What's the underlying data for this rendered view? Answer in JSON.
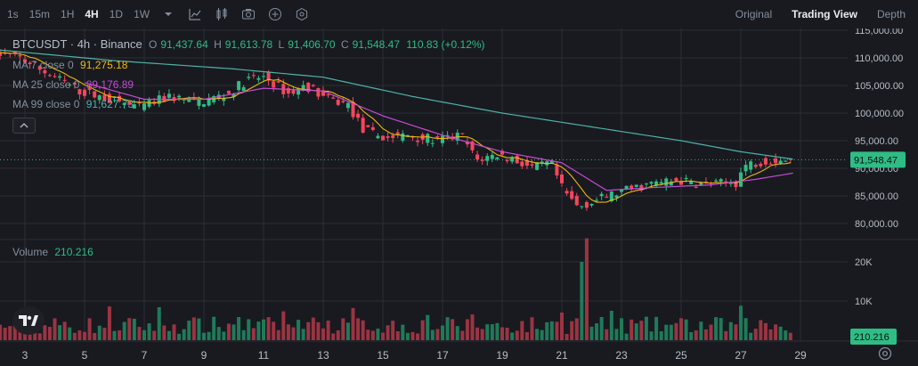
{
  "toolbar": {
    "timeframes": [
      "1s",
      "15m",
      "1H",
      "4H",
      "1D",
      "1W"
    ],
    "active_timeframe": "4H",
    "views": [
      "Original",
      "Trading View",
      "Depth"
    ],
    "active_view": "Trading View"
  },
  "legend": {
    "symbol": "BTCUSDT · 4h · Binance",
    "open_label": "O",
    "open": "91,437.64",
    "high_label": "H",
    "high": "91,613.78",
    "low_label": "L",
    "low": "91,406.70",
    "close_label": "C",
    "close": "91,548.47",
    "change": "110.83 (+0.12%)",
    "ma7_label": "MA 7 close 0",
    "ma7": "91,275.18",
    "ma25_label": "MA 25 close 0",
    "ma25": "89,176.89",
    "ma99_label": "MA 99 close 0",
    "ma99": "91,627.73",
    "volume_label": "Volume",
    "volume": "210.216"
  },
  "colors": {
    "up": "#2ebd85",
    "down": "#f6465d",
    "ma7": "#f0b90b",
    "ma25": "#c74bd6",
    "ma99": "#4fb3a9",
    "background": "#181a20",
    "grid": "#2b2f36",
    "axis_text": "#b7bdc6"
  },
  "chart_data": {
    "type": "candlestick",
    "price_axis_ticks": [
      "115,000.00",
      "110,000.00",
      "105,000.00",
      "100,000.00",
      "95,000.00",
      "90,000.00",
      "85,000.00",
      "80,000.00"
    ],
    "price_axis_values": [
      115000,
      110000,
      105000,
      100000,
      95000,
      90000,
      85000,
      80000
    ],
    "current_price_label": "91,548.47",
    "current_price": 91548.47,
    "volume_axis_ticks": [
      "20K",
      "10K"
    ],
    "volume_axis_values": [
      20000,
      10000
    ],
    "current_volume_label": "210.216",
    "x_ticks": [
      "3",
      "5",
      "7",
      "9",
      "11",
      "13",
      "15",
      "17",
      "19",
      "21",
      "23",
      "25",
      "27",
      "29"
    ],
    "x_tick_days": [
      3,
      5,
      7,
      9,
      11,
      13,
      15,
      17,
      19,
      21,
      23,
      25,
      27,
      29
    ],
    "anchors": [
      {
        "day": 2.0,
        "price": 111000
      },
      {
        "day": 3.0,
        "price": 110000
      },
      {
        "day": 4.0,
        "price": 107000
      },
      {
        "day": 5.0,
        "price": 104000
      },
      {
        "day": 6.0,
        "price": 102500
      },
      {
        "day": 7.0,
        "price": 101000
      },
      {
        "day": 8.0,
        "price": 103000
      },
      {
        "day": 9.0,
        "price": 102000
      },
      {
        "day": 10.0,
        "price": 103500
      },
      {
        "day": 10.6,
        "price": 106000
      },
      {
        "day": 11.2,
        "price": 106500
      },
      {
        "day": 12.0,
        "price": 103500
      },
      {
        "day": 12.6,
        "price": 105000
      },
      {
        "day": 13.3,
        "price": 102500
      },
      {
        "day": 14.0,
        "price": 101500
      },
      {
        "day": 14.5,
        "price": 97000
      },
      {
        "day": 15.2,
        "price": 95500
      },
      {
        "day": 16.0,
        "price": 96000
      },
      {
        "day": 17.0,
        "price": 95000
      },
      {
        "day": 17.8,
        "price": 96000
      },
      {
        "day": 18.3,
        "price": 91500
      },
      {
        "day": 19.0,
        "price": 92500
      },
      {
        "day": 19.6,
        "price": 91500
      },
      {
        "day": 20.2,
        "price": 90000
      },
      {
        "day": 20.8,
        "price": 91000
      },
      {
        "day": 21.2,
        "price": 86000
      },
      {
        "day": 21.7,
        "price": 83000
      },
      {
        "day": 22.2,
        "price": 84000
      },
      {
        "day": 23.0,
        "price": 85500
      },
      {
        "day": 24.0,
        "price": 87000
      },
      {
        "day": 25.0,
        "price": 87800
      },
      {
        "day": 26.0,
        "price": 87000
      },
      {
        "day": 27.0,
        "price": 87500
      },
      {
        "day": 27.3,
        "price": 90500
      },
      {
        "day": 28.0,
        "price": 91500
      },
      {
        "day": 28.8,
        "price": 91548
      }
    ],
    "ma25_points": [
      {
        "day": 5.0,
        "price": 105500
      },
      {
        "day": 7.0,
        "price": 102500
      },
      {
        "day": 9.0,
        "price": 102500
      },
      {
        "day": 11.0,
        "price": 104500
      },
      {
        "day": 13.0,
        "price": 104000
      },
      {
        "day": 15.0,
        "price": 99500
      },
      {
        "day": 17.0,
        "price": 96000
      },
      {
        "day": 19.0,
        "price": 93000
      },
      {
        "day": 21.0,
        "price": 91000
      },
      {
        "day": 22.5,
        "price": 86000
      },
      {
        "day": 24.0,
        "price": 86500
      },
      {
        "day": 26.0,
        "price": 87000
      },
      {
        "day": 27.5,
        "price": 88000
      },
      {
        "day": 28.8,
        "price": 89176
      }
    ],
    "ma99_points": [
      {
        "day": 2.0,
        "price": 111500
      },
      {
        "day": 6.0,
        "price": 109500
      },
      {
        "day": 10.0,
        "price": 108000
      },
      {
        "day": 13.0,
        "price": 106500
      },
      {
        "day": 16.0,
        "price": 103000
      },
      {
        "day": 19.0,
        "price": 100000
      },
      {
        "day": 22.0,
        "price": 97500
      },
      {
        "day": 25.0,
        "price": 95000
      },
      {
        "day": 27.0,
        "price": 93000
      },
      {
        "day": 28.8,
        "price": 91627
      }
    ]
  }
}
